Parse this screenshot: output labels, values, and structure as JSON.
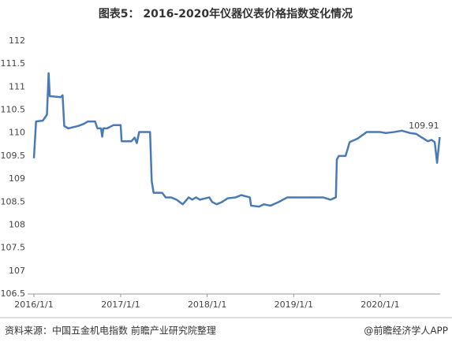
{
  "chart_data": {
    "type": "line",
    "title": "图表5： 2016-2020年仪器仪表价格指数变化情况",
    "source": "资料来源：中国五金机电指数 前瞻产业研究院整理",
    "credit": "@前瞻经济学人APP",
    "series": [
      {
        "name": "仪器仪表价格指数",
        "color": "#4a7ab5",
        "x": [
          "2016/1/1",
          "2016/1/10",
          "2016/2/8",
          "2016/2/25",
          "2016/3/3",
          "2016/3/8",
          "2016/4/23",
          "2016/5/1",
          "2016/5/8",
          "2016/5/25",
          "2016/6/10",
          "2016/7/5",
          "2016/7/30",
          "2016/8/15",
          "2016/9/15",
          "2016/9/25",
          "2016/10/10",
          "2016/10/15",
          "2016/10/20",
          "2016/11/5",
          "2016/12/1",
          "2017/1/1",
          "2017/1/5",
          "2017/2/15",
          "2017/3/1",
          "2017/3/10",
          "2017/3/20",
          "2017/5/5",
          "2017/5/12",
          "2017/5/20",
          "2017/6/25",
          "2017/7/10",
          "2017/8/1",
          "2017/8/25",
          "2017/9/20",
          "2017/10/15",
          "2017/10/30",
          "2017/11/15",
          "2017/12/1",
          "2018/1/10",
          "2018/1/22",
          "2018/2/10",
          "2018/3/5",
          "2018/3/28",
          "2018/5/1",
          "2018/5/25",
          "2018/6/30",
          "2018/7/5",
          "2018/8/8",
          "2018/8/28",
          "2018/9/25",
          "2018/10/30",
          "2018/12/5",
          "2019/1/1",
          "2019/3/1",
          "2019/5/5",
          "2019/6/5",
          "2019/6/28",
          "2019/7/2",
          "2019/7/10",
          "2019/8/8",
          "2019/8/25",
          "2019/9/28",
          "2019/11/5",
          "2020/1/1",
          "2020/1/25",
          "2020/2/28",
          "2020/4/1",
          "2020/5/5",
          "2020/6/1",
          "2020/6/25",
          "2020/7/20",
          "2020/8/5",
          "2020/8/18",
          "2020/8/28",
          "2020/9/8"
        ],
        "values": [
          109.45,
          110.25,
          110.27,
          110.4,
          111.3,
          110.8,
          110.78,
          110.82,
          110.15,
          110.1,
          110.12,
          110.15,
          110.2,
          110.25,
          110.25,
          110.1,
          110.1,
          109.92,
          110.1,
          110.1,
          110.17,
          110.17,
          109.82,
          109.82,
          109.9,
          109.78,
          110.02,
          110.02,
          108.95,
          108.7,
          108.7,
          108.6,
          108.6,
          108.55,
          108.45,
          108.6,
          108.55,
          108.6,
          108.55,
          108.6,
          108.5,
          108.45,
          108.5,
          108.58,
          108.6,
          108.65,
          108.6,
          108.42,
          108.4,
          108.45,
          108.42,
          108.5,
          108.6,
          108.6,
          108.6,
          108.6,
          108.55,
          108.6,
          109.42,
          109.5,
          109.5,
          109.8,
          109.88,
          110.02,
          110.02,
          110.0,
          110.02,
          110.05,
          110.0,
          109.98,
          109.9,
          109.82,
          109.85,
          109.8,
          109.35,
          109.91
        ]
      }
    ],
    "xlim": [
      "2016/1/1",
      "2020/9/10"
    ],
    "xticks": [
      "2016/1/1",
      "2017/1/1",
      "2018/1/1",
      "2019/1/1",
      "2020/1/1"
    ],
    "ylim": [
      106.5,
      112
    ],
    "yticks": [
      106.5,
      107,
      107.5,
      108,
      108.5,
      109,
      109.5,
      110,
      110.5,
      111,
      111.5,
      112
    ],
    "grid": false
  }
}
